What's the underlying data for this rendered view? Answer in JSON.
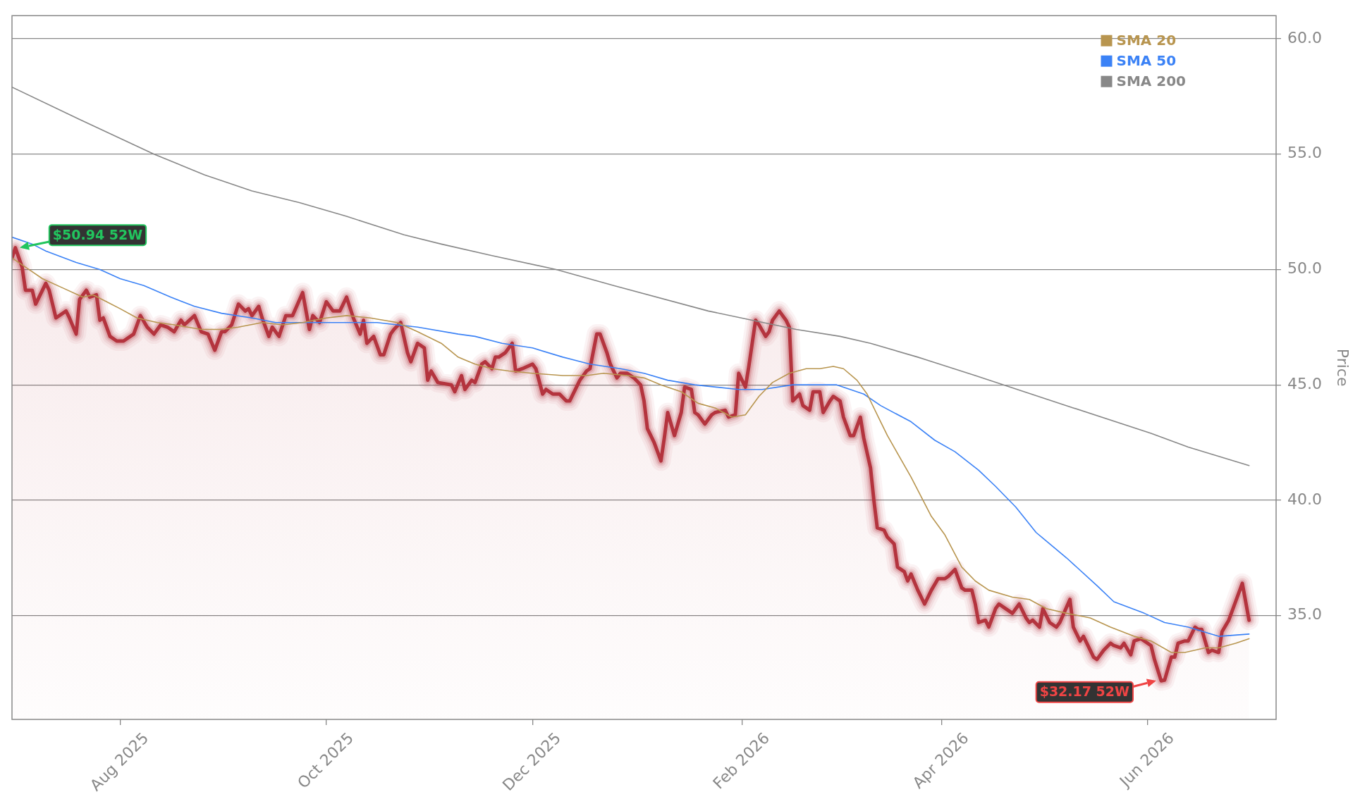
{
  "chart_data": {
    "type": "line",
    "ylabel": "Price",
    "xlim": [
      "2025-06-30",
      "2026-07-09"
    ],
    "xticks": [
      {
        "value": "2025-08-01",
        "label": "Aug 2025"
      },
      {
        "value": "2025-10-01",
        "label": "Oct 2025"
      },
      {
        "value": "2025-12-01",
        "label": "Dec 2025"
      },
      {
        "value": "2026-02-01",
        "label": "Feb 2026"
      },
      {
        "value": "2026-04-01",
        "label": "Apr 2026"
      },
      {
        "value": "2026-06-01",
        "label": "Jun 2026"
      }
    ],
    "ylim": [
      30.5,
      61.0
    ],
    "yticks": [
      {
        "value": 35,
        "label": "35.0"
      },
      {
        "value": 40,
        "label": "40.0"
      },
      {
        "value": 45,
        "label": "45.0"
      },
      {
        "value": 50,
        "label": "50.0"
      },
      {
        "value": 55,
        "label": "55.0"
      },
      {
        "value": 60,
        "label": "60.0"
      }
    ],
    "grid": "y",
    "legend": "top right",
    "annotations": [
      {
        "text": "$50.94 52W",
        "x": "2025-07-01",
        "y": 50.94
      },
      {
        "text": "$32.17 52W",
        "x": "2026-06-05",
        "y": 32.17
      }
    ],
    "series": [
      {
        "type": "area",
        "color": "#b4343e",
        "x": [
          "2025-06-30",
          "2025-07-01",
          "2025-07-03",
          "2025-07-04",
          "2025-07-06",
          "2025-07-07",
          "2025-07-10",
          "2025-07-11",
          "2025-07-13",
          "2025-07-16",
          "2025-07-17",
          "2025-07-19",
          "2025-07-20",
          "2025-07-22",
          "2025-07-23",
          "2025-07-25",
          "2025-07-26",
          "2025-07-27",
          "2025-07-29",
          "2025-07-31",
          "2025-08-02",
          "2025-08-05",
          "2025-08-07",
          "2025-08-09",
          "2025-08-11",
          "2025-08-13",
          "2025-08-15",
          "2025-08-17",
          "2025-08-19",
          "2025-08-20",
          "2025-08-23",
          "2025-08-25",
          "2025-08-27",
          "2025-08-29",
          "2025-08-31",
          "2025-09-01",
          "2025-09-03",
          "2025-09-05",
          "2025-09-07",
          "2025-09-08",
          "2025-09-09",
          "2025-09-11",
          "2025-09-12",
          "2025-09-14",
          "2025-09-15",
          "2025-09-17",
          "2025-09-19",
          "2025-09-21",
          "2025-09-24",
          "2025-09-26",
          "2025-09-27",
          "2025-09-29",
          "2025-10-01",
          "2025-10-03",
          "2025-10-05",
          "2025-10-07",
          "2025-10-09",
          "2025-10-11",
          "2025-10-12",
          "2025-10-13",
          "2025-10-15",
          "2025-10-17",
          "2025-10-18",
          "2025-10-20",
          "2025-10-21",
          "2025-10-23",
          "2025-10-25",
          "2025-10-26",
          "2025-10-28",
          "2025-10-30",
          "2025-10-31",
          "2025-11-01",
          "2025-11-03",
          "2025-11-07",
          "2025-11-08",
          "2025-11-10",
          "2025-11-11",
          "2025-11-13",
          "2025-11-14",
          "2025-11-16",
          "2025-11-17",
          "2025-11-19",
          "2025-11-20",
          "2025-11-21",
          "2025-11-23",
          "2025-11-25",
          "2025-11-26",
          "2025-11-28",
          "2025-12-01",
          "2025-12-02",
          "2025-12-04",
          "2025-12-05",
          "2025-12-07",
          "2025-12-09",
          "2025-12-11",
          "2025-12-12",
          "2025-12-15",
          "2025-12-17",
          "2025-12-18",
          "2025-12-20",
          "2025-12-21",
          "2025-12-23",
          "2025-12-24",
          "2025-12-26",
          "2025-12-27",
          "2025-12-29",
          "2025-12-31",
          "2026-01-02",
          "2026-01-03",
          "2026-01-04",
          "2026-01-06",
          "2026-01-08",
          "2026-01-09",
          "2026-01-10",
          "2026-01-12",
          "2026-01-14",
          "2026-01-15",
          "2026-01-17",
          "2026-01-18",
          "2026-01-19",
          "2026-01-21",
          "2026-01-23",
          "2026-01-24",
          "2026-01-27",
          "2026-01-28",
          "2026-01-30",
          "2026-01-31",
          "2026-02-02",
          "2026-02-03",
          "2026-02-05",
          "2026-02-06",
          "2026-02-08",
          "2026-02-09",
          "2026-02-10",
          "2026-02-12",
          "2026-02-14",
          "2026-02-15",
          "2026-02-16",
          "2026-02-18",
          "2026-02-19",
          "2026-02-21",
          "2026-02-22",
          "2026-02-24",
          "2026-02-25",
          "2026-02-27",
          "2026-02-28",
          "2026-03-02",
          "2026-03-03",
          "2026-03-05",
          "2026-03-06",
          "2026-03-08",
          "2026-03-09",
          "2026-03-11",
          "2026-03-12",
          "2026-03-13",
          "2026-03-15",
          "2026-03-16",
          "2026-03-18",
          "2026-03-19",
          "2026-03-21",
          "2026-03-22",
          "2026-03-23",
          "2026-03-25",
          "2026-03-27",
          "2026-03-29",
          "2026-03-31",
          "2026-04-02",
          "2026-04-03",
          "2026-04-05",
          "2026-04-07",
          "2026-04-08",
          "2026-04-10",
          "2026-04-11",
          "2026-04-12",
          "2026-04-14",
          "2026-04-15",
          "2026-04-17",
          "2026-04-18",
          "2026-04-20",
          "2026-04-22",
          "2026-04-23",
          "2026-04-24",
          "2026-04-26",
          "2026-04-27",
          "2026-04-28",
          "2026-04-30",
          "2026-05-01",
          "2026-05-03",
          "2026-05-05",
          "2026-05-06",
          "2026-05-09",
          "2026-05-10",
          "2026-05-12",
          "2026-05-13",
          "2026-05-14",
          "2026-05-16",
          "2026-05-17",
          "2026-05-19",
          "2026-05-21",
          "2026-05-22",
          "2026-05-24",
          "2026-05-25",
          "2026-05-27",
          "2026-05-28",
          "2026-05-30",
          "2026-05-31",
          "2026-06-02",
          "2026-06-03",
          "2026-06-05",
          "2026-06-06",
          "2026-06-08",
          "2026-06-09",
          "2026-06-10",
          "2026-06-12",
          "2026-06-13",
          "2026-06-15",
          "2026-06-16",
          "2026-06-17",
          "2026-06-19",
          "2026-06-20",
          "2026-06-22",
          "2026-06-23",
          "2026-06-25",
          "2026-06-27",
          "2026-06-29",
          "2026-07-01"
        ],
        "values": [
          50.5,
          50.94,
          50.1,
          49.1,
          49.1,
          48.5,
          49.4,
          49.1,
          47.9,
          48.2,
          47.9,
          47.2,
          48.7,
          49.1,
          48.8,
          48.9,
          47.8,
          47.9,
          47.1,
          46.9,
          46.9,
          47.2,
          48.0,
          47.5,
          47.2,
          47.6,
          47.5,
          47.3,
          47.8,
          47.6,
          48.0,
          47.3,
          47.2,
          46.5,
          47.3,
          47.3,
          47.6,
          48.5,
          48.2,
          48.3,
          48.0,
          48.4,
          47.9,
          47.1,
          47.5,
          47.1,
          48.0,
          48.0,
          49.0,
          47.4,
          48.0,
          47.7,
          48.6,
          48.2,
          48.2,
          48.8,
          47.9,
          47.2,
          47.8,
          46.8,
          47.1,
          46.3,
          46.3,
          47.2,
          47.4,
          47.7,
          46.4,
          46.0,
          46.8,
          46.6,
          45.2,
          45.6,
          45.1,
          45.0,
          44.7,
          45.4,
          44.8,
          45.2,
          45.1,
          45.9,
          46.0,
          45.7,
          46.2,
          46.2,
          46.4,
          46.8,
          45.6,
          45.7,
          45.9,
          45.7,
          44.6,
          44.8,
          44.6,
          44.6,
          44.3,
          44.3,
          45.2,
          45.6,
          45.7,
          47.2,
          47.2,
          46.4,
          45.9,
          45.3,
          45.5,
          45.5,
          45.3,
          45.0,
          44.3,
          43.1,
          42.5,
          41.7,
          42.7,
          43.8,
          42.8,
          43.8,
          44.9,
          44.8,
          43.8,
          43.7,
          43.3,
          43.7,
          43.8,
          43.9,
          43.6,
          43.7,
          45.5,
          44.9,
          45.8,
          47.8,
          47.6,
          47.1,
          47.3,
          47.8,
          48.2,
          47.8,
          47.5,
          44.3,
          44.6,
          44.1,
          43.9,
          44.7,
          44.7,
          43.8,
          44.3,
          44.5,
          44.3,
          43.6,
          42.8,
          42.8,
          43.6,
          42.7,
          41.4,
          40.0,
          38.8,
          38.7,
          38.4,
          38.1,
          37.1,
          36.9,
          36.5,
          36.8,
          36.1,
          35.5,
          36.1,
          36.6,
          36.6,
          36.7,
          37.0,
          36.2,
          36.1,
          36.1,
          35.5,
          34.7,
          34.8,
          34.5,
          35.3,
          35.5,
          35.3,
          35.1,
          35.3,
          35.5,
          34.9,
          34.7,
          34.8,
          34.5,
          35.3,
          34.7,
          34.5,
          34.7,
          35.7,
          34.5,
          33.9,
          34.1,
          33.8,
          33.2,
          33.1,
          33.5,
          33.8,
          33.7,
          33.6,
          33.8,
          33.3,
          33.9,
          34.0,
          33.9,
          33.7,
          33.1,
          32.17,
          32.2,
          33.2,
          33.2,
          33.8,
          33.9,
          33.9,
          34.5,
          34.4,
          34.4,
          33.4,
          33.5,
          33.4,
          34.3,
          34.8,
          35.6,
          36.4,
          34.8
        ]
      },
      {
        "type": "line",
        "name": "SMA 20",
        "color": "#b8954f",
        "x": [
          "2025-06-30",
          "2025-07-05",
          "2025-07-09",
          "2025-07-15",
          "2025-07-21",
          "2025-07-24",
          "2025-07-28",
          "2025-08-01",
          "2025-08-06",
          "2025-08-12",
          "2025-08-17",
          "2025-08-25",
          "2025-08-31",
          "2025-09-05",
          "2025-09-12",
          "2025-09-18",
          "2025-09-24",
          "2025-10-01",
          "2025-10-07",
          "2025-10-14",
          "2025-10-22",
          "2025-10-28",
          "2025-11-04",
          "2025-11-09",
          "2025-11-14",
          "2025-11-19",
          "2025-11-24",
          "2025-12-01",
          "2025-12-10",
          "2025-12-17",
          "2025-12-22",
          "2025-12-29",
          "2026-01-03",
          "2026-01-08",
          "2026-01-14",
          "2026-01-19",
          "2026-01-24",
          "2026-01-29",
          "2026-02-02",
          "2026-02-06",
          "2026-02-10",
          "2026-02-15",
          "2026-02-20",
          "2026-02-24",
          "2026-02-28",
          "2026-03-03",
          "2026-03-07",
          "2026-03-10",
          "2026-03-14",
          "2026-03-16",
          "2026-03-23",
          "2026-03-29",
          "2026-04-02",
          "2026-04-07",
          "2026-04-11",
          "2026-04-15",
          "2026-04-22",
          "2026-04-27",
          "2026-05-02",
          "2026-05-08",
          "2026-05-15",
          "2026-05-21",
          "2026-05-28",
          "2026-06-02",
          "2026-06-08",
          "2026-06-12",
          "2026-06-18",
          "2026-06-22",
          "2026-06-27",
          "2026-07-01"
        ],
        "values": [
          50.5,
          50.0,
          49.6,
          49.2,
          48.8,
          48.9,
          48.6,
          48.3,
          47.9,
          47.7,
          47.6,
          47.4,
          47.4,
          47.5,
          47.7,
          47.6,
          47.7,
          47.9,
          48.0,
          47.9,
          47.7,
          47.3,
          46.8,
          46.2,
          45.9,
          45.7,
          45.6,
          45.5,
          45.4,
          45.4,
          45.5,
          45.4,
          45.3,
          45.0,
          44.7,
          44.2,
          44.0,
          43.6,
          43.7,
          44.5,
          45.1,
          45.5,
          45.7,
          45.7,
          45.8,
          45.7,
          45.2,
          44.6,
          43.4,
          42.8,
          41.0,
          39.3,
          38.5,
          37.1,
          36.5,
          36.1,
          35.8,
          35.7,
          35.3,
          35.1,
          34.9,
          34.5,
          34.1,
          33.9,
          33.4,
          33.4,
          33.6,
          33.6,
          33.8,
          34.0
        ]
      },
      {
        "type": "line",
        "name": "SMA 50",
        "color": "#3b82f6",
        "x": [
          "2025-06-30",
          "2025-07-06",
          "2025-07-10",
          "2025-07-19",
          "2025-07-26",
          "2025-08-01",
          "2025-08-08",
          "2025-08-16",
          "2025-08-23",
          "2025-08-31",
          "2025-09-09",
          "2025-09-16",
          "2025-09-26",
          "2025-10-07",
          "2025-10-16",
          "2025-10-28",
          "2025-11-09",
          "2025-11-14",
          "2025-11-22",
          "2025-12-01",
          "2025-12-10",
          "2025-12-18",
          "2025-12-27",
          "2026-01-03",
          "2026-01-10",
          "2026-01-18",
          "2026-01-31",
          "2026-02-07",
          "2026-02-16",
          "2026-03-01",
          "2026-03-09",
          "2026-03-14",
          "2026-03-23",
          "2026-03-30",
          "2026-04-05",
          "2026-04-12",
          "2026-04-17",
          "2026-04-23",
          "2026-04-29",
          "2026-05-08",
          "2026-05-17",
          "2026-05-22",
          "2026-05-31",
          "2026-06-06",
          "2026-06-13",
          "2026-06-22",
          "2026-07-01"
        ],
        "values": [
          51.4,
          51.1,
          50.8,
          50.3,
          50.0,
          49.6,
          49.3,
          48.8,
          48.4,
          48.1,
          47.9,
          47.7,
          47.7,
          47.7,
          47.7,
          47.5,
          47.2,
          47.1,
          46.8,
          46.6,
          46.2,
          45.9,
          45.7,
          45.5,
          45.2,
          45.0,
          44.8,
          44.8,
          45.0,
          45.0,
          44.6,
          44.1,
          43.4,
          42.6,
          42.1,
          41.3,
          40.6,
          39.7,
          38.6,
          37.5,
          36.3,
          35.6,
          35.1,
          34.7,
          34.5,
          34.1,
          34.2
        ]
      },
      {
        "type": "line",
        "name": "SMA 200",
        "color": "#888888",
        "x": [
          "2025-06-30",
          "2025-07-20",
          "2025-08-11",
          "2025-08-26",
          "2025-09-09",
          "2025-09-23",
          "2025-10-07",
          "2025-10-24",
          "2025-11-04",
          "2025-11-19",
          "2025-12-08",
          "2025-12-25",
          "2026-01-22",
          "2026-02-04",
          "2026-02-17",
          "2026-03-02",
          "2026-03-11",
          "2026-03-25",
          "2026-04-11",
          "2026-05-10",
          "2026-06-02",
          "2026-06-13",
          "2026-07-01"
        ],
        "values": [
          57.9,
          56.5,
          55.0,
          54.1,
          53.4,
          52.9,
          52.3,
          51.5,
          51.1,
          50.6,
          50.0,
          49.3,
          48.2,
          47.8,
          47.4,
          47.1,
          46.8,
          46.2,
          45.4,
          44.0,
          42.9,
          42.3,
          41.5
        ]
      }
    ]
  }
}
